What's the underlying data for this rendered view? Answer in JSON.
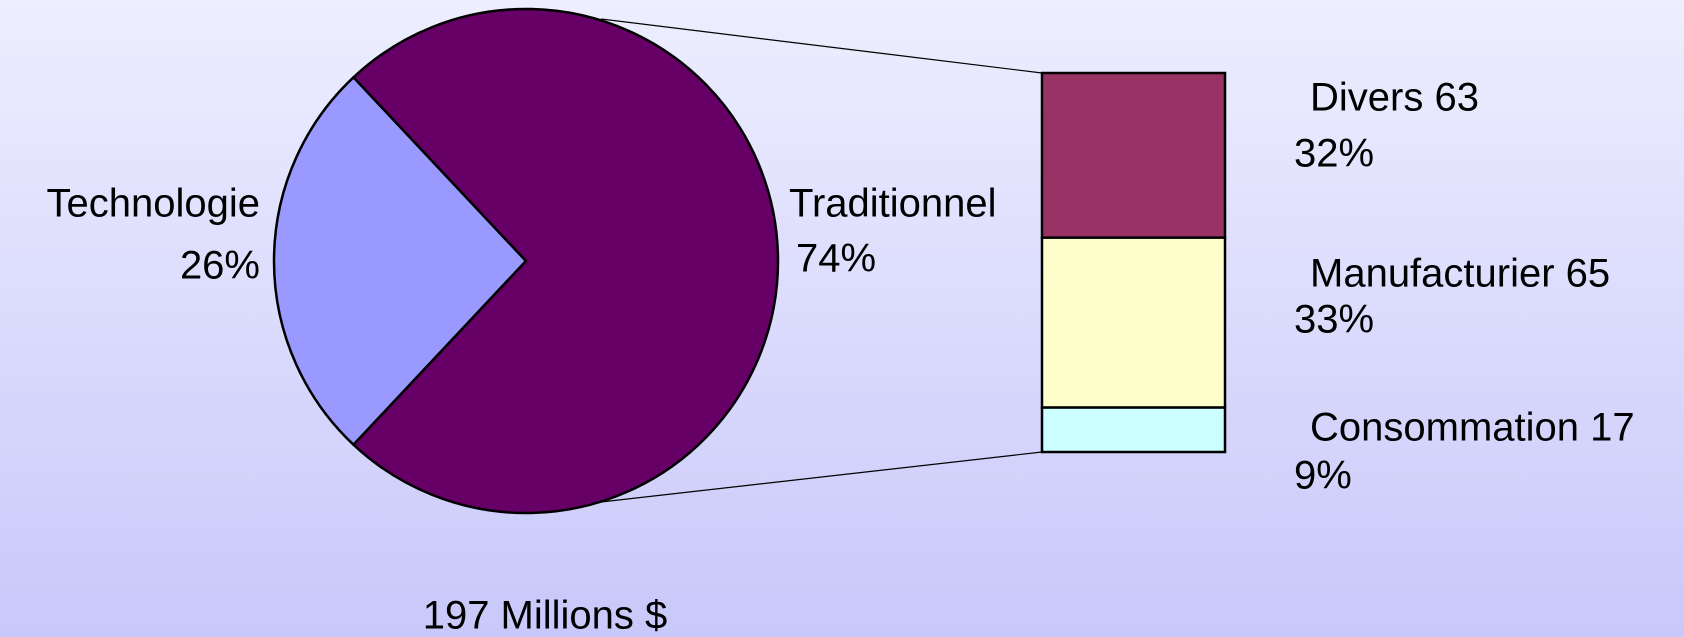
{
  "chart_data": {
    "type": "pie-of-bar",
    "annotation": "197 Millions $",
    "pie": {
      "categories": [
        "Technologie",
        "Traditionnel"
      ],
      "values": [
        26,
        74
      ],
      "value_labels": [
        "26%",
        "74%"
      ],
      "colors": [
        "#9999ff",
        "#660066"
      ]
    },
    "bar": {
      "categories": [
        "Divers",
        "Manufacturier",
        "Consommation"
      ],
      "values": [
        63,
        65,
        17
      ],
      "value_labels": [
        [
          "Divers 63",
          "32%"
        ],
        [
          "Manufacturier 65",
          "33%"
        ],
        [
          "Consommation 17",
          "9%"
        ]
      ],
      "colors": [
        "#993366",
        "#ffffcc",
        "#ccffff"
      ]
    }
  }
}
